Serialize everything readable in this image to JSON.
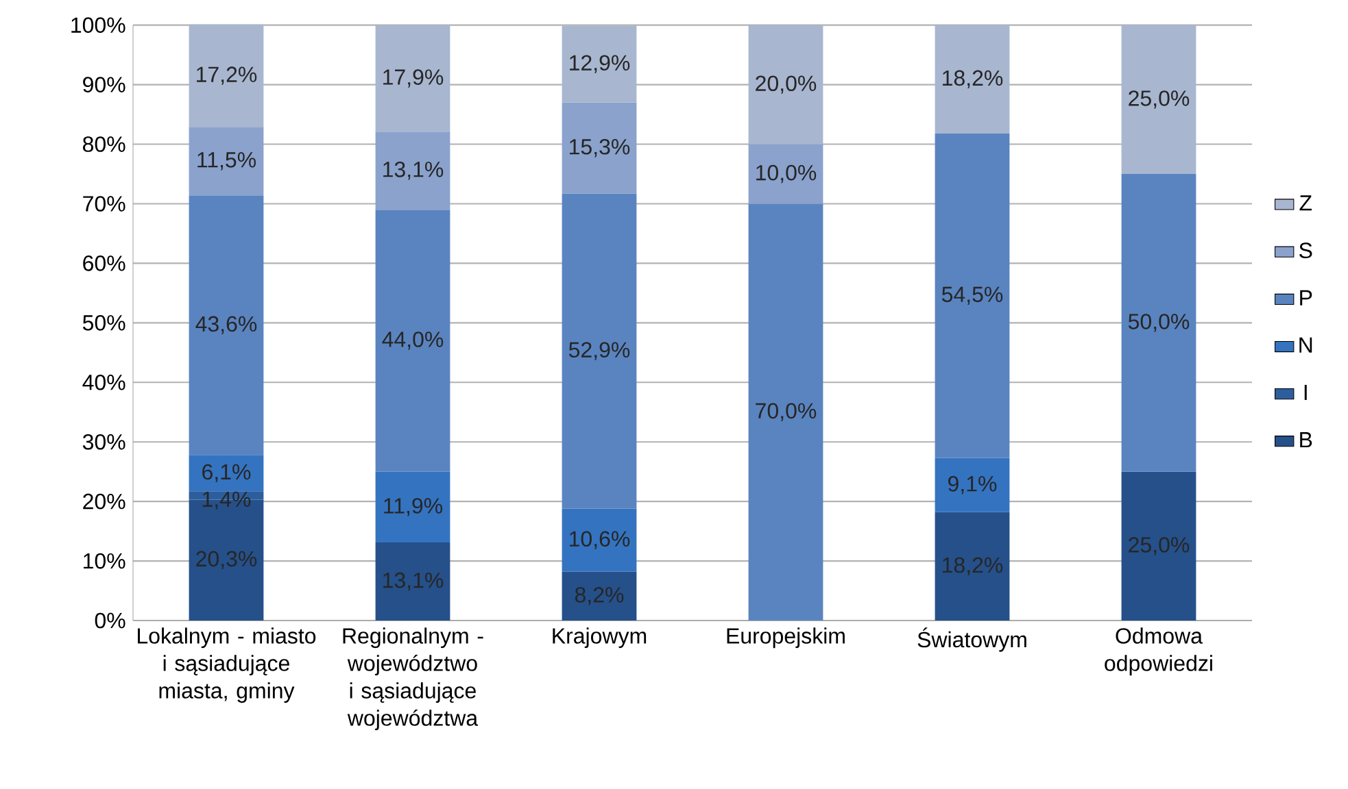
{
  "chart_data": {
    "type": "bar",
    "stacked": true,
    "categories": [
      "Lokalnym - miasto i sąsiadujące miasta, gminy",
      "Regionalnym - województwo i sąsiadujące województwa",
      "Krajowym",
      "Europejskim",
      "Światowym",
      "Odmowa odpowiedzi"
    ],
    "series": [
      {
        "name": "B",
        "color": "#25508a",
        "values": [
          20.3,
          13.1,
          8.2,
          null,
          18.2,
          25.0
        ],
        "value_labels": [
          "20,3%",
          "13,1%",
          "8,2%",
          null,
          "18,2%",
          "25,0%"
        ]
      },
      {
        "name": "I",
        "color": "#2c5e9e",
        "values": [
          1.4,
          null,
          null,
          null,
          null,
          null
        ],
        "value_labels": [
          "1,4%",
          null,
          null,
          null,
          null,
          null
        ]
      },
      {
        "name": "N",
        "color": "#3473c0",
        "values": [
          6.1,
          11.9,
          10.6,
          null,
          9.1,
          null
        ],
        "value_labels": [
          "6,1%",
          "11,9%",
          "10,6%",
          null,
          "9,1%",
          null
        ]
      },
      {
        "name": "P",
        "color": "#5a84c0",
        "values": [
          43.6,
          44.0,
          52.9,
          70.0,
          54.5,
          50.0
        ],
        "value_labels": [
          "43,6%",
          "44,0%",
          "52,9%",
          "70,0%",
          "54,5%",
          "50,0%"
        ]
      },
      {
        "name": "S",
        "color": "#8aa2cc",
        "values": [
          11.5,
          13.1,
          15.3,
          10.0,
          null,
          null
        ],
        "value_labels": [
          "11,5%",
          "13,1%",
          "15,3%",
          "10,0%",
          null,
          null
        ]
      },
      {
        "name": "Z",
        "color": "#a8b6d0",
        "values": [
          17.2,
          17.9,
          12.9,
          20.0,
          18.2,
          25.0
        ],
        "value_labels": [
          "17,2%",
          "17,9%",
          "12,9%",
          "20,0%",
          "18,2%",
          "25,0%"
        ]
      }
    ],
    "ylim": [
      0,
      100
    ],
    "yticks": [
      {
        "value": 0,
        "label": "0%"
      },
      {
        "value": 10,
        "label": "10%"
      },
      {
        "value": 20,
        "label": "20%"
      },
      {
        "value": 30,
        "label": "30%"
      },
      {
        "value": 40,
        "label": "40%"
      },
      {
        "value": 50,
        "label": "50%"
      },
      {
        "value": 60,
        "label": "60%"
      },
      {
        "value": 70,
        "label": "70%"
      },
      {
        "value": 80,
        "label": "80%"
      },
      {
        "value": 90,
        "label": "90%"
      },
      {
        "value": 100,
        "label": "100%"
      }
    ],
    "grid": "y",
    "legend": "right"
  }
}
